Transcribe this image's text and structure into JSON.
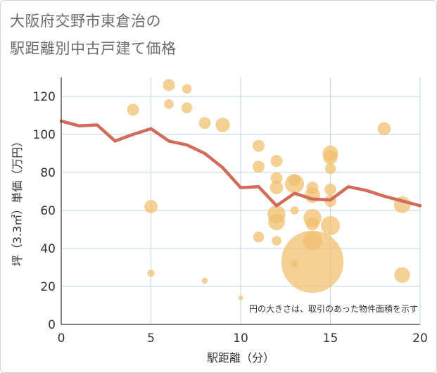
{
  "title_line1": "大阪府交野市東倉治の",
  "title_line2": "駅距離別中古戸建て価格",
  "chart_data": {
    "type": "scatter",
    "xlabel": "駅距離（分）",
    "ylabel": "坪（3.3㎡）単価（万円）",
    "xlim": [
      0,
      20
    ],
    "ylim": [
      0,
      130
    ],
    "xticks": [
      0,
      5,
      10,
      15,
      20
    ],
    "yticks": [
      0,
      20,
      40,
      60,
      80,
      100,
      120
    ],
    "grid": true,
    "note": "円の大きさは、取引のあった物件面積を示す",
    "colors": {
      "bubble": "#f0c070",
      "line": "#d26b5a",
      "grid": "#c7d3e0"
    },
    "points": [
      {
        "x": 4,
        "y": 113,
        "size": 1.0
      },
      {
        "x": 5,
        "y": 62,
        "size": 1.1
      },
      {
        "x": 5,
        "y": 27,
        "size": 0.6
      },
      {
        "x": 6,
        "y": 126,
        "size": 1.0
      },
      {
        "x": 6,
        "y": 116,
        "size": 0.8
      },
      {
        "x": 7,
        "y": 124,
        "size": 0.8
      },
      {
        "x": 7,
        "y": 114,
        "size": 0.9
      },
      {
        "x": 8,
        "y": 106,
        "size": 1.0
      },
      {
        "x": 8,
        "y": 23,
        "size": 0.5
      },
      {
        "x": 9,
        "y": 105,
        "size": 1.2
      },
      {
        "x": 10,
        "y": 14,
        "size": 0.4
      },
      {
        "x": 11,
        "y": 94,
        "size": 1.0
      },
      {
        "x": 11,
        "y": 83,
        "size": 1.0
      },
      {
        "x": 11,
        "y": 46,
        "size": 0.9
      },
      {
        "x": 12,
        "y": 86,
        "size": 1.0
      },
      {
        "x": 12,
        "y": 77,
        "size": 1.0
      },
      {
        "x": 12,
        "y": 72,
        "size": 1.1
      },
      {
        "x": 12,
        "y": 58,
        "size": 1.5
      },
      {
        "x": 12,
        "y": 54,
        "size": 1.4
      },
      {
        "x": 12,
        "y": 44,
        "size": 0.8
      },
      {
        "x": 13,
        "y": 76,
        "size": 1.0
      },
      {
        "x": 13,
        "y": 74,
        "size": 1.6
      },
      {
        "x": 13,
        "y": 60,
        "size": 0.7
      },
      {
        "x": 13,
        "y": 32,
        "size": 0.6
      },
      {
        "x": 14,
        "y": 72,
        "size": 1.0
      },
      {
        "x": 14,
        "y": 68,
        "size": 1.3
      },
      {
        "x": 14,
        "y": 56,
        "size": 1.5
      },
      {
        "x": 14,
        "y": 53,
        "size": 1.1
      },
      {
        "x": 14,
        "y": 44,
        "size": 1.6
      },
      {
        "x": 14,
        "y": 33,
        "size": 5.2
      },
      {
        "x": 15,
        "y": 90,
        "size": 1.3
      },
      {
        "x": 15,
        "y": 88,
        "size": 1.2
      },
      {
        "x": 15,
        "y": 82,
        "size": 0.9
      },
      {
        "x": 15,
        "y": 71,
        "size": 1.0
      },
      {
        "x": 15,
        "y": 65,
        "size": 1.0
      },
      {
        "x": 15,
        "y": 52,
        "size": 1.6
      },
      {
        "x": 18,
        "y": 103,
        "size": 1.1
      },
      {
        "x": 19,
        "y": 63,
        "size": 1.4
      },
      {
        "x": 19,
        "y": 26,
        "size": 1.3
      }
    ],
    "line": {
      "x": [
        0,
        1,
        2,
        3,
        4,
        5,
        6,
        7,
        8,
        9,
        10,
        11,
        12,
        13,
        14,
        15,
        16,
        17,
        18,
        19,
        20
      ],
      "y": [
        107,
        104.5,
        105,
        96.5,
        100,
        103,
        96.5,
        94.5,
        90,
        82.5,
        72,
        72.5,
        62.5,
        69,
        66,
        65.5,
        72.5,
        70.5,
        67.5,
        65,
        62.5
      ]
    }
  }
}
